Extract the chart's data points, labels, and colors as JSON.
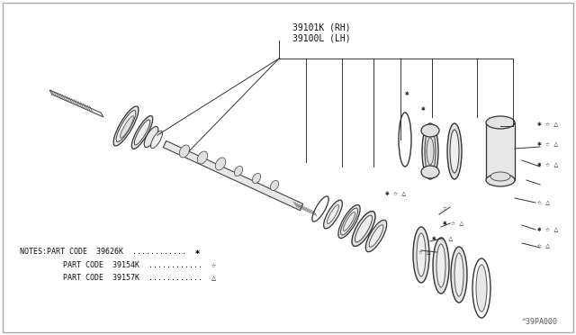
{
  "bg_color": "#ffffff",
  "line_color": "#333333",
  "part_label_top1": "39101K (RH)",
  "part_label_top2": "39100L (LH)",
  "note1": "NOTES:PART CODE  39626K  ............  ✱",
  "note2": "      PART CODE  39154K  ............  ☆",
  "note3": "      PART CODE  39157K  ............  △",
  "diagram_id": "^39PA000",
  "sym_ast": "✱",
  "sym_star": "☆",
  "sym_tri": "△",
  "lc": "#333333",
  "fc_light": "#f0f0f0",
  "fc_mid": "#e0e0e0",
  "fc_dark": "#cccccc",
  "ec": "#333333"
}
